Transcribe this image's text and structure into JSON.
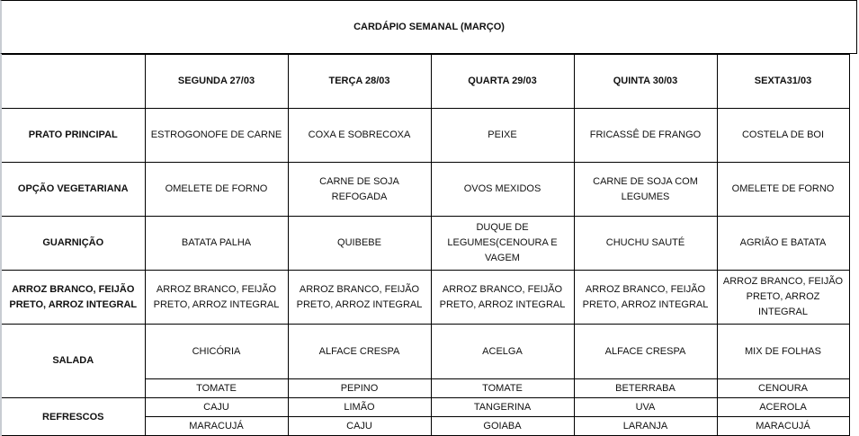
{
  "title": "CARDÁPIO SEMANAL (MARÇO)",
  "days": [
    "SEGUNDA 27/03",
    "TERÇA 28/03",
    "QUARTA 29/03",
    "QUINTA 30/03",
    "SEXTA31/03"
  ],
  "rows": [
    {
      "label": "PRATO PRINCIPAL",
      "values": [
        "ESTROGONOFE DE CARNE",
        "COXA E SOBRECOXA",
        "PEIXE",
        "FRICASSÊ DE FRANGO",
        "COSTELA DE BOI"
      ]
    },
    {
      "label": "OPÇÃO VEGETARIANA",
      "values": [
        "OMELETE DE FORNO",
        "CARNE DE SOJA REFOGADA",
        "OVOS MEXIDOS",
        "CARNE DE SOJA COM LEGUMES",
        "OMELETE DE FORNO"
      ]
    },
    {
      "label": "GUARNIÇÃO",
      "values": [
        "BATATA PALHA",
        "QUIBEBE",
        "DUQUE DE LEGUMES(CENOURA E VAGEM",
        "CHUCHU SAUTÉ",
        "AGRIÃO E BATATA"
      ]
    },
    {
      "label": "ARROZ BRANCO, FEIJÃO PRETO, ARROZ INTEGRAL",
      "values": [
        "ARROZ BRANCO, FEIJÃO PRETO, ARROZ INTEGRAL",
        "ARROZ BRANCO, FEIJÃO PRETO, ARROZ INTEGRAL",
        "ARROZ BRANCO, FEIJÃO PRETO, ARROZ INTEGRAL",
        "ARROZ BRANCO, FEIJÃO PRETO, ARROZ INTEGRAL",
        "ARROZ BRANCO, FEIJÃO PRETO, ARROZ INTEGRAL"
      ]
    }
  ],
  "salada": {
    "label": "SALADA",
    "line1": [
      "CHICÓRIA",
      "ALFACE CRESPA",
      "ACELGA",
      "ALFACE CRESPA",
      "MIX DE FOLHAS"
    ],
    "line2": [
      "TOMATE",
      "PEPINO",
      "TOMATE",
      "BETERRABA",
      "CENOURA"
    ]
  },
  "refrescos": {
    "label": "REFRESCOS",
    "line1": [
      "CAJU",
      "LIMÃO",
      "TANGERINA",
      "UVA",
      "ACEROLA"
    ],
    "line2": [
      "MARACUJÁ",
      "CAJU",
      "GOIABA",
      "LARANJA",
      "MARACUJÁ"
    ]
  }
}
